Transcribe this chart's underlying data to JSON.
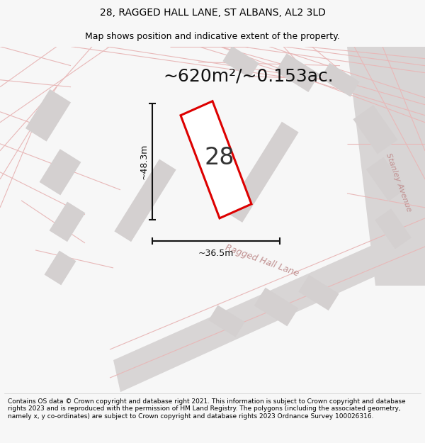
{
  "title_line1": "28, RAGGED HALL LANE, ST ALBANS, AL2 3LD",
  "title_line2": "Map shows position and indicative extent of the property.",
  "area_label": "~620m²/~0.153ac.",
  "house_number": "28",
  "dim_height": "~48.3m",
  "dim_width": "~36.5m",
  "road_label": "Ragged Hall Lane",
  "road_label2": "Stanley Avenue",
  "footer_text": "Contains OS data © Crown copyright and database right 2021. This information is subject to Crown copyright and database rights 2023 and is reproduced with the permission of HM Land Registry. The polygons (including the associated geometry, namely x, y co-ordinates) are subject to Crown copyright and database rights 2023 Ordnance Survey 100026316.",
  "bg_color": "#f7f7f7",
  "map_bg": "#f9f8f8",
  "road_fill": "#d8d5d5",
  "plot_fill": "#ffffff",
  "plot_edge": "#dd0000",
  "road_line_color": "#e8b8b8",
  "building_fill": "#d4d0d0",
  "dim_line_color": "#111111",
  "title_fontsize": 10,
  "subtitle_fontsize": 9,
  "area_fontsize": 18,
  "house_fontsize": 24,
  "dim_fontsize": 9,
  "road_fontsize": 9,
  "footer_fontsize": 6.5
}
